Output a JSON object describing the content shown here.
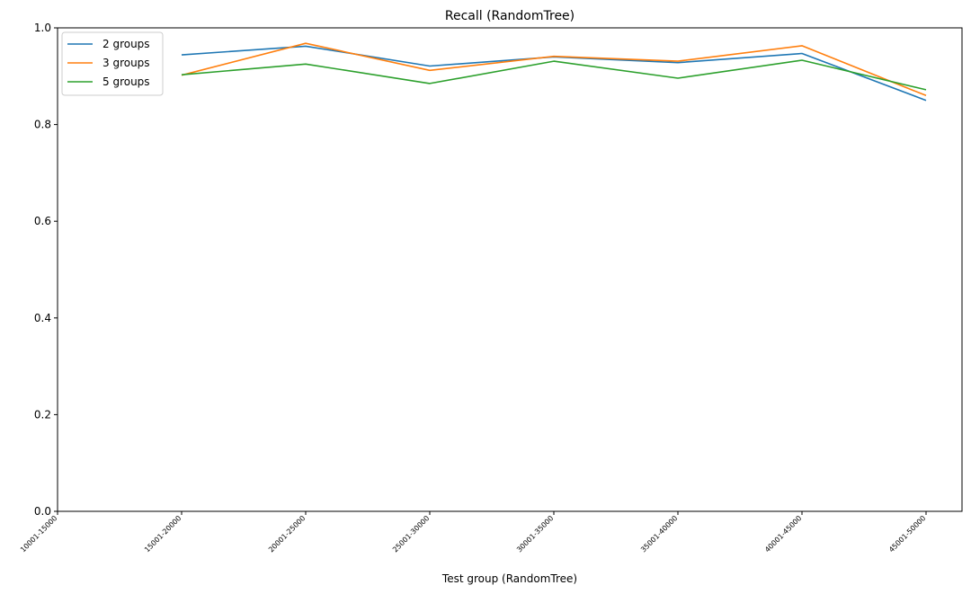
{
  "chart_data": {
    "type": "line",
    "title": "Recall (RandomTree)",
    "xlabel": "Test group (RandomTree)",
    "ylabel": "",
    "ylim": [
      0,
      1.0
    ],
    "yticks": [
      "0.0",
      "0.2",
      "0.4",
      "0.6",
      "0.8",
      "1.0"
    ],
    "categories": [
      "10001-15000",
      "15001-20000",
      "20001-25000",
      "25001-30000",
      "30001-35000",
      "35001-40000",
      "40001-45000",
      "45001-50000"
    ],
    "series": [
      {
        "name": "2 groups",
        "color": "#1f77b4",
        "values": [
          null,
          0.944,
          0.962,
          0.921,
          0.94,
          0.928,
          0.947,
          0.85
        ]
      },
      {
        "name": "3 groups",
        "color": "#ff7f0e",
        "values": [
          null,
          0.902,
          0.968,
          0.912,
          0.941,
          0.931,
          0.963,
          0.86
        ]
      },
      {
        "name": "5 groups",
        "color": "#2ca02c",
        "values": [
          null,
          0.903,
          0.925,
          0.885,
          0.931,
          0.896,
          0.933,
          0.872
        ]
      }
    ],
    "grid": false,
    "legend": "top-left"
  }
}
